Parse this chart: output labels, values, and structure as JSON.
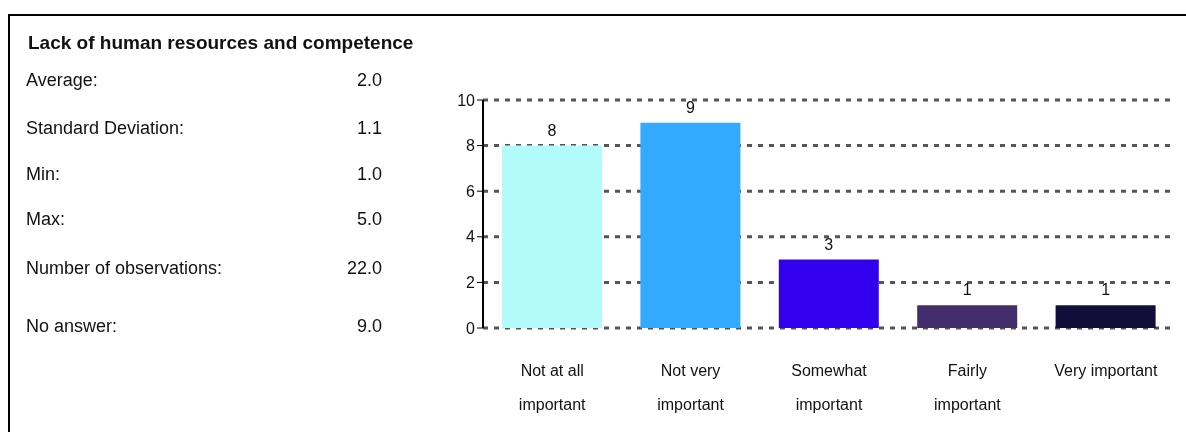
{
  "chart_data": {
    "type": "bar",
    "title": "Lack of human resources and competence",
    "annotations": [
      "Average: 2.0",
      "Standard Deviation: 1.1",
      "Min: 1.0",
      "Max: 5.0",
      "Number of observations: 22.0",
      "No answer: 9.0"
    ],
    "categories": [
      "Not at all important",
      "Not very important",
      "Somewhat important",
      "Fairly important",
      "Very important"
    ],
    "values": [
      8,
      9,
      3,
      1,
      1
    ],
    "colors": [
      "#b3fbfb",
      "#33aaff",
      "#3300ee",
      "#442d6b",
      "#0f0f3a"
    ],
    "ylim": [
      0,
      10
    ],
    "yticks": [
      0,
      2,
      4,
      6,
      8,
      10
    ],
    "grid": "y",
    "data_labels": true
  }
}
